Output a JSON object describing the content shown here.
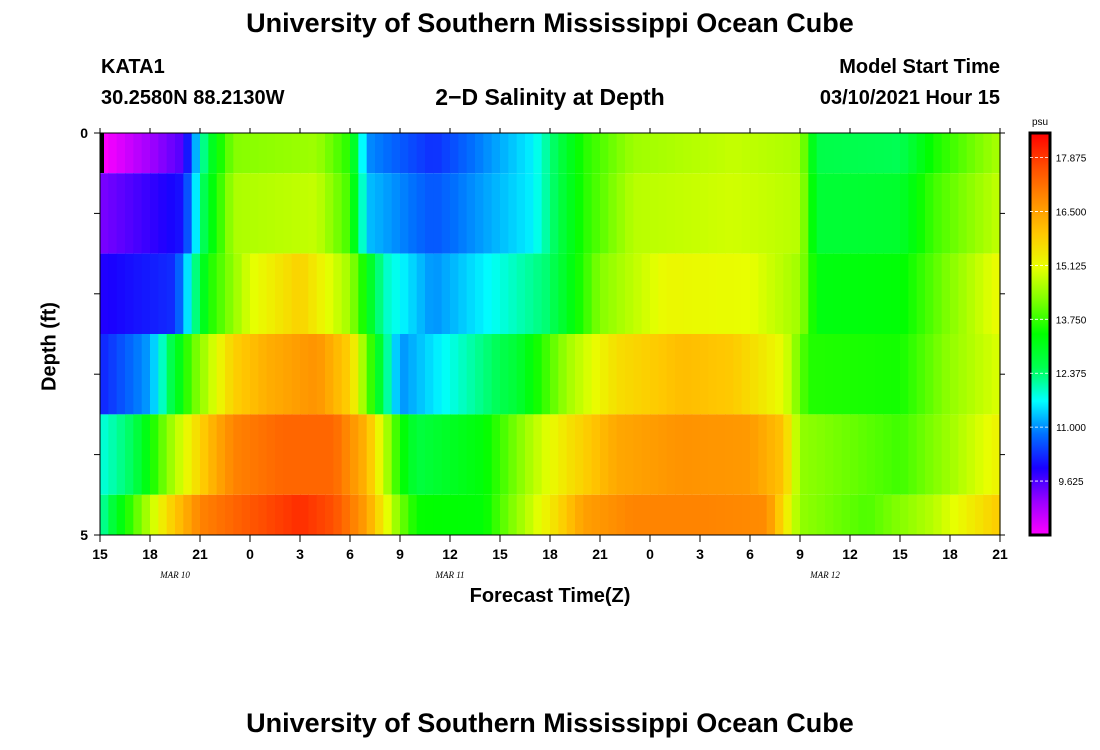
{
  "title_top": "University of Southern Mississippi Ocean Cube",
  "title_bottom": "University of Southern Mississippi Ocean Cube",
  "station": {
    "id": "KATA1",
    "coords": "30.2580N 88.2130W"
  },
  "model": {
    "label": "Model Start Time",
    "time": "03/10/2021 Hour 15"
  },
  "chart_data": {
    "type": "heatmap",
    "title": "2−D Salinity at Depth",
    "xlabel": "Forecast Time(Z)",
    "ylabel": "Depth (ft)",
    "y_range": [
      0,
      5
    ],
    "y_tick_labels": [
      {
        "label": "0",
        "value": 0
      },
      {
        "label": "5",
        "value": 5
      }
    ],
    "x_range_hours": [
      0,
      54
    ],
    "x_ticks": [
      {
        "label": "15",
        "hour": 0
      },
      {
        "label": "18",
        "hour": 3
      },
      {
        "label": "21",
        "hour": 6
      },
      {
        "label": "0",
        "hour": 9
      },
      {
        "label": "3",
        "hour": 12
      },
      {
        "label": "6",
        "hour": 15
      },
      {
        "label": "9",
        "hour": 18
      },
      {
        "label": "12",
        "hour": 21
      },
      {
        "label": "15",
        "hour": 24
      },
      {
        "label": "18",
        "hour": 27
      },
      {
        "label": "21",
        "hour": 30
      },
      {
        "label": "0",
        "hour": 33
      },
      {
        "label": "3",
        "hour": 36
      },
      {
        "label": "6",
        "hour": 39
      },
      {
        "label": "9",
        "hour": 42
      },
      {
        "label": "12",
        "hour": 45
      },
      {
        "label": "15",
        "hour": 48
      },
      {
        "label": "18",
        "hour": 51
      },
      {
        "label": "21",
        "hour": 54
      }
    ],
    "date_labels": [
      {
        "label": "MAR  10",
        "hour": 4.5
      },
      {
        "label": "MAR  11",
        "hour": 21
      },
      {
        "label": "MAR  12",
        "hour": 43.5
      }
    ],
    "depth_bands": [
      {
        "from": 0.0,
        "to": 0.5,
        "anchors": [
          [
            0,
            8.2
          ],
          [
            5,
            9.6
          ],
          [
            6.5,
            12.8
          ],
          [
            8,
            14.3
          ],
          [
            13,
            14.5
          ],
          [
            15,
            13.6
          ],
          [
            16,
            11.0
          ],
          [
            20,
            10.3
          ],
          [
            26,
            11.6
          ],
          [
            29,
            13.6
          ],
          [
            32,
            14.5
          ],
          [
            38,
            14.8
          ],
          [
            42,
            14.6
          ],
          [
            43,
            12.6
          ],
          [
            48,
            12.5
          ],
          [
            50,
            13.5
          ],
          [
            54,
            14.6
          ]
        ]
      },
      {
        "from": 0.5,
        "to": 1.5,
        "anchors": [
          [
            0,
            9.3
          ],
          [
            5,
            10.1
          ],
          [
            6.5,
            13.0
          ],
          [
            8,
            14.6
          ],
          [
            13,
            14.8
          ],
          [
            15,
            13.8
          ],
          [
            16,
            11.3
          ],
          [
            20,
            10.6
          ],
          [
            26,
            11.6
          ],
          [
            29,
            13.6
          ],
          [
            32,
            14.7
          ],
          [
            38,
            14.9
          ],
          [
            42,
            14.7
          ],
          [
            43,
            12.8
          ],
          [
            48,
            12.9
          ],
          [
            50,
            13.8
          ],
          [
            54,
            14.8
          ]
        ]
      },
      {
        "from": 1.5,
        "to": 2.5,
        "anchors": [
          [
            0,
            9.9
          ],
          [
            4.5,
            10.3
          ],
          [
            6.5,
            13.5
          ],
          [
            9,
            15.0
          ],
          [
            12,
            15.8
          ],
          [
            15,
            14.5
          ],
          [
            17,
            12.0
          ],
          [
            20,
            11.0
          ],
          [
            27,
            12.4
          ],
          [
            30,
            14.3
          ],
          [
            34,
            15.2
          ],
          [
            39,
            15.1
          ],
          [
            42,
            14.5
          ],
          [
            43,
            13.2
          ],
          [
            48,
            13.3
          ],
          [
            51,
            14.3
          ],
          [
            54,
            15.2
          ]
        ]
      },
      {
        "from": 2.5,
        "to": 3.5,
        "anchors": [
          [
            0,
            10.2
          ],
          [
            3,
            11.1
          ],
          [
            5.5,
            14.0
          ],
          [
            8,
            15.8
          ],
          [
            10,
            16.3
          ],
          [
            13,
            16.7
          ],
          [
            15,
            15.8
          ],
          [
            17,
            12.5
          ],
          [
            18,
            11.0
          ],
          [
            25,
            12.8
          ],
          [
            28,
            14.5
          ],
          [
            31,
            15.6
          ],
          [
            35,
            16.1
          ],
          [
            38,
            15.9
          ],
          [
            41,
            15.1
          ],
          [
            42.5,
            13.6
          ],
          [
            48,
            13.5
          ],
          [
            51,
            14.4
          ],
          [
            54,
            15.0
          ]
        ]
      },
      {
        "from": 3.5,
        "to": 4.5,
        "anchors": [
          [
            0,
            11.8
          ],
          [
            2,
            12.5
          ],
          [
            4,
            14.3
          ],
          [
            6.5,
            16.1
          ],
          [
            8,
            16.9
          ],
          [
            11,
            17.3
          ],
          [
            14,
            17.3
          ],
          [
            16,
            16.2
          ],
          [
            18,
            13.5
          ],
          [
            19,
            12.7
          ],
          [
            23,
            13.3
          ],
          [
            26,
            14.7
          ],
          [
            28,
            15.5
          ],
          [
            31,
            16.4
          ],
          [
            35,
            16.7
          ],
          [
            39,
            16.6
          ],
          [
            41,
            16.0
          ],
          [
            42,
            14.4
          ],
          [
            48,
            13.8
          ],
          [
            51,
            14.5
          ],
          [
            54,
            15.3
          ]
        ]
      },
      {
        "from": 4.5,
        "to": 5.0,
        "anchors": [
          [
            0,
            12.0
          ],
          [
            1,
            13.0
          ],
          [
            4,
            15.6
          ],
          [
            6,
            16.9
          ],
          [
            9,
            17.5
          ],
          [
            12,
            18.0
          ],
          [
            14,
            17.6
          ],
          [
            16,
            16.5
          ],
          [
            18,
            14.2
          ],
          [
            19,
            13.4
          ],
          [
            23,
            13.3
          ],
          [
            24,
            13.9
          ],
          [
            27,
            15.4
          ],
          [
            29,
            16.5
          ],
          [
            32,
            16.9
          ],
          [
            36,
            16.9
          ],
          [
            40,
            16.8
          ],
          [
            41,
            15.6
          ],
          [
            42,
            14.4
          ],
          [
            46,
            13.9
          ],
          [
            50,
            14.7
          ],
          [
            54,
            15.9
          ]
        ]
      }
    ],
    "colorbar": {
      "unit": "psu",
      "min": 8.25,
      "max": 18.5,
      "ticks": [
        "17.875",
        "16.500",
        "15.125",
        "13.750",
        "12.375",
        "11.000",
        "9.625"
      ],
      "colors": [
        "#ff00ff",
        "#9a00ff",
        "#1a00ff",
        "#0070ff",
        "#00ffff",
        "#00ff50",
        "#00ff00",
        "#7cff00",
        "#e8ff00",
        "#ffc800",
        "#ff8c00",
        "#ff4c00",
        "#ff0000"
      ]
    }
  }
}
